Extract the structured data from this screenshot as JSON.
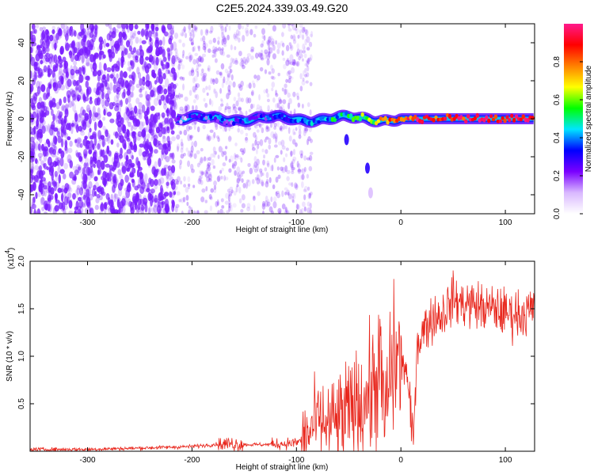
{
  "title": "C2E5.2024.339.03.49.G20",
  "chart_data": [
    {
      "type": "heatmap",
      "title": "C2E5.2024.339.03.49.G20",
      "xlabel": "Height of straight line (km)",
      "ylabel": "Frequency (Hz)",
      "xlim": [
        -355,
        128
      ],
      "ylim": [
        -50,
        50
      ],
      "x_ticks": [
        -300,
        -200,
        -100,
        0,
        100
      ],
      "y_ticks": [
        -40,
        -20,
        0,
        20,
        40
      ],
      "colorbar": {
        "label": "Normalized spectral amplitude",
        "range": [
          0,
          1
        ],
        "ticks": [
          0.0,
          0.2,
          0.4,
          0.6,
          0.8
        ],
        "colors": [
          "#ffffff",
          "#d9b8ff",
          "#7a00ff",
          "#0000ff",
          "#00e5ff",
          "#00ff00",
          "#ffff00",
          "#ff8000",
          "#ff0000",
          "#ff1a8c"
        ]
      },
      "features": {
        "noise_region_x": [
          -355,
          -215
        ],
        "noise_color": "#7a1cff",
        "main_band_x": [
          -215,
          128
        ],
        "main_band_center_y": 0,
        "main_band_halfwidth_hz": 3,
        "secondary_spots": [
          {
            "x": -32,
            "y": -26,
            "amp": 0.3
          },
          {
            "x": -52,
            "y": -11,
            "amp": 0.3
          },
          {
            "x": -29,
            "y": -39,
            "amp": 0.1
          }
        ],
        "band_amplitude_profile": [
          {
            "x": -215,
            "amp": 0.25
          },
          {
            "x": -120,
            "amp": 0.3
          },
          {
            "x": -60,
            "amp": 0.45
          },
          {
            "x": -20,
            "amp": 0.7
          },
          {
            "x": 0,
            "amp": 0.85
          },
          {
            "x": 60,
            "amp": 0.95
          },
          {
            "x": 128,
            "amp": 0.9
          }
        ]
      }
    },
    {
      "type": "line",
      "title": "",
      "xlabel": "Height of straight line (km)",
      "ylabel": "SNR (10 * v/v)",
      "y_multiplier_label": "(x10",
      "y_multiplier_exponent": "4",
      "y_multiplier_close": ")",
      "xlim": [
        -355,
        128
      ],
      "ylim": [
        0,
        2.0
      ],
      "x_ticks": [
        -300,
        -200,
        -100,
        0,
        100
      ],
      "y_ticks": [
        0.5,
        1.0,
        1.5,
        2.0
      ],
      "series": [
        {
          "color": "#e8261c",
          "x": [
            -355,
            -300,
            -260,
            -230,
            -200,
            -180,
            -160,
            -150,
            -130,
            -110,
            -100,
            -90,
            -85,
            -80,
            -70,
            -60,
            -50,
            -40,
            -30,
            -25,
            -20,
            -15,
            -10,
            -5,
            0,
            5,
            10,
            12,
            15,
            20,
            30,
            40,
            50,
            60,
            70,
            80,
            90,
            100,
            110,
            120,
            128
          ],
          "y": [
            0.02,
            0.02,
            0.03,
            0.04,
            0.05,
            0.07,
            0.08,
            0.07,
            0.07,
            0.08,
            0.09,
            0.15,
            0.25,
            0.3,
            0.28,
            0.32,
            0.4,
            0.5,
            0.6,
            0.7,
            0.9,
            0.3,
            0.85,
            0.95,
            1.0,
            0.85,
            0.3,
            0.05,
            1.1,
            1.25,
            1.4,
            1.45,
            1.6,
            1.55,
            1.55,
            1.5,
            1.5,
            1.45,
            1.45,
            1.45,
            1.5
          ]
        }
      ]
    }
  ]
}
